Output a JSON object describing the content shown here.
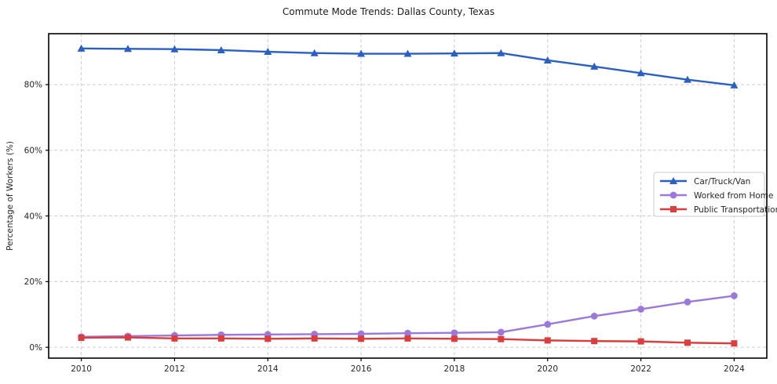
{
  "style": {
    "grid_color": "#cccccc",
    "axis_color": "#000000",
    "tick_label_color": "#262626",
    "legend_border_color": "#cccccc",
    "legend_bg": "#ffffff",
    "legend_text_color": "#262626"
  },
  "chart_data": {
    "type": "line",
    "title": "Commute Mode Trends: Dallas County, Texas",
    "xlabel": "",
    "ylabel": "Percentage of Workers (%)",
    "x": [
      2010,
      2011,
      2012,
      2013,
      2014,
      2015,
      2016,
      2017,
      2018,
      2019,
      2020,
      2021,
      2022,
      2023,
      2024
    ],
    "x_tick_values": [
      2010,
      2012,
      2014,
      2016,
      2018,
      2020,
      2022,
      2024
    ],
    "x_tick_labels": [
      "2010",
      "2012",
      "2014",
      "2016",
      "2018",
      "2020",
      "2022",
      "2024"
    ],
    "y_tick_values": [
      0,
      20,
      40,
      60,
      80
    ],
    "y_tick_labels": [
      "0%",
      "20%",
      "40%",
      "60%",
      "80%"
    ],
    "xlim": [
      2009.3,
      2024.7
    ],
    "ylim": [
      -3.3,
      95.5
    ],
    "grid": true,
    "legend_position": "center-right",
    "series": [
      {
        "id": "car-truck-van",
        "name": "Car/Truck/Van",
        "color": "#2a5fc4",
        "marker": "triangle",
        "values": [
          91.0,
          90.9,
          90.8,
          90.5,
          90.0,
          89.6,
          89.4,
          89.4,
          89.5,
          89.6,
          87.4,
          85.5,
          83.5,
          81.5,
          79.8
        ]
      },
      {
        "id": "worked-from-home",
        "name": "Worked from Home",
        "color": "#9b79da",
        "marker": "circle",
        "values": [
          3.2,
          3.4,
          3.6,
          3.8,
          3.9,
          4.0,
          4.1,
          4.3,
          4.4,
          4.6,
          7.0,
          9.5,
          11.6,
          13.8,
          15.7
        ]
      },
      {
        "id": "public-transportation",
        "name": "Public Transportation",
        "color": "#db3e3e",
        "marker": "square",
        "values": [
          2.9,
          3.0,
          2.7,
          2.7,
          2.6,
          2.7,
          2.6,
          2.7,
          2.6,
          2.5,
          2.1,
          1.9,
          1.8,
          1.4,
          1.2
        ]
      }
    ]
  }
}
